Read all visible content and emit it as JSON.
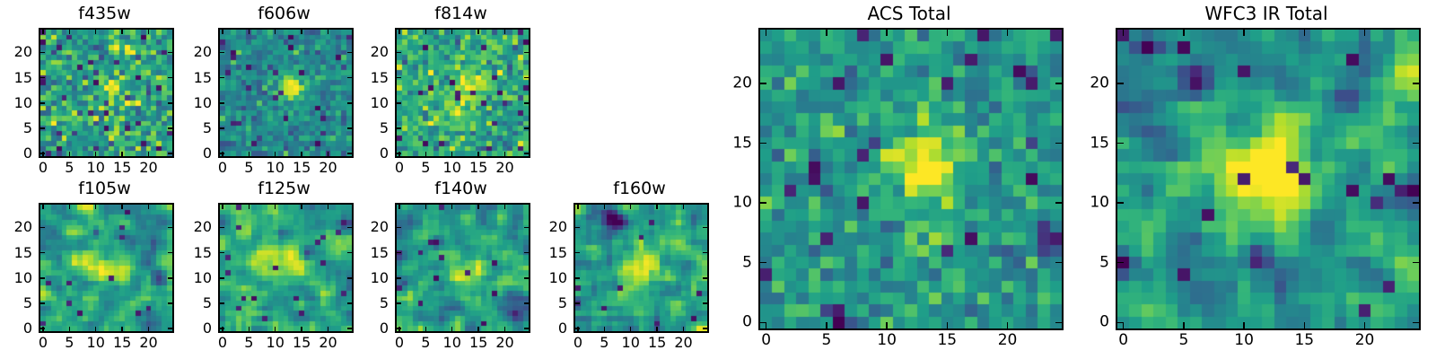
{
  "figure": {
    "background": "#ffffff"
  },
  "colors": {
    "axis": "#000000",
    "text": "#000000",
    "viridis_stops": [
      "#440154",
      "#482878",
      "#3e4989",
      "#31688e",
      "#26828e",
      "#1f9e89",
      "#35b779",
      "#6ece58",
      "#b5de2b",
      "#fde725"
    ]
  },
  "chart_data": {
    "type": "heatmap",
    "colormap": "viridis",
    "grid": {
      "cols": 25,
      "rows": 25
    },
    "axis": {
      "xrange": [
        -0.5,
        24.5
      ],
      "yrange": [
        -0.5,
        24.5
      ],
      "xticks": [
        0,
        5,
        10,
        15,
        20
      ],
      "yticks": [
        0,
        5,
        10,
        15,
        20
      ],
      "tick_direction": "in",
      "grid_lines": false,
      "legend": "none"
    },
    "description": "Postage-stamp image cutouts of one galaxy in seven HST filter bands plus ACS and WFC3 IR stacked totals; each panel is a 25x25-pixel viridis heatmap with a bright source centered near (13,13).",
    "panels": [
      {
        "id": "f435w",
        "title": "f435w",
        "group": "band",
        "size": "small",
        "render": {
          "seed": 11,
          "background": 0.57,
          "noise_sigma": 0.16,
          "smooth_passes": 0,
          "source": {
            "x": 13,
            "y": 13,
            "amplitude": 0.24,
            "sigma": 1.7
          },
          "extra_sources": [],
          "dark_pixel_fraction": 0.04,
          "dark_blobs": []
        }
      },
      {
        "id": "f606w",
        "title": "f606w",
        "group": "band",
        "size": "small",
        "render": {
          "seed": 22,
          "background": 0.47,
          "noise_sigma": 0.1,
          "smooth_passes": 0,
          "source": {
            "x": 13,
            "y": 13,
            "amplitude": 0.58,
            "sigma": 1.7
          },
          "extra_sources": [],
          "dark_pixel_fraction": 0.035,
          "dark_blobs": []
        }
      },
      {
        "id": "f814w",
        "title": "f814w",
        "group": "band",
        "size": "small",
        "render": {
          "seed": 33,
          "background": 0.6,
          "noise_sigma": 0.14,
          "smooth_passes": 0,
          "source": {
            "x": 13,
            "y": 13,
            "amplitude": 0.36,
            "sigma": 2.2
          },
          "extra_sources": [
            {
              "x": 11,
              "y": 9,
              "amplitude": 0.2,
              "sigma": 2.0
            }
          ],
          "dark_pixel_fraction": 0.035,
          "dark_blobs": []
        }
      },
      {
        "id": "f105w",
        "title": "f105w",
        "group": "band",
        "size": "small",
        "render": {
          "seed": 44,
          "background": 0.54,
          "noise_sigma": 0.3,
          "smooth_passes": 1,
          "source": {
            "x": 12,
            "y": 12,
            "amplitude": 0.34,
            "sigma": 2.4
          },
          "extra_sources": [
            {
              "x": 7,
              "y": 13,
              "amplitude": 0.25,
              "sigma": 1.5
            }
          ],
          "dark_pixel_fraction": 0.02,
          "dark_blobs": [
            {
              "x": 10,
              "y": 19,
              "sigma": 0.7,
              "depth": 0.45
            },
            {
              "x": 22,
              "y": 10,
              "sigma": 1.0,
              "depth": 0.35
            }
          ]
        }
      },
      {
        "id": "f125w",
        "title": "f125w",
        "group": "band",
        "size": "small",
        "render": {
          "seed": 55,
          "background": 0.58,
          "noise_sigma": 0.3,
          "smooth_passes": 1,
          "source": {
            "x": 12,
            "y": 13,
            "amplitude": 0.38,
            "sigma": 2.6
          },
          "extra_sources": [
            {
              "x": 6,
              "y": 13,
              "amplitude": 0.2,
              "sigma": 2.0
            }
          ],
          "dark_pixel_fraction": 0.025,
          "dark_blobs": [
            {
              "x": 16,
              "y": 15,
              "sigma": 0.8,
              "depth": 0.4
            },
            {
              "x": 23,
              "y": 21,
              "sigma": 0.8,
              "depth": 0.35
            }
          ]
        }
      },
      {
        "id": "f140w",
        "title": "f140w",
        "group": "band",
        "size": "small",
        "render": {
          "seed": 66,
          "background": 0.57,
          "noise_sigma": 0.3,
          "smooth_passes": 1,
          "source": {
            "x": 12,
            "y": 12,
            "amplitude": 0.35,
            "sigma": 2.6
          },
          "extra_sources": [],
          "dark_pixel_fraction": 0.02,
          "dark_blobs": [
            {
              "x": 22,
              "y": 3,
              "sigma": 1.2,
              "depth": 0.5
            },
            {
              "x": 7,
              "y": 17,
              "sigma": 0.7,
              "depth": 0.45
            },
            {
              "x": 12,
              "y": 24,
              "sigma": 0.8,
              "depth": 0.4
            }
          ]
        }
      },
      {
        "id": "f160w",
        "title": "f160w",
        "group": "band",
        "size": "small",
        "render": {
          "seed": 77,
          "background": 0.56,
          "noise_sigma": 0.32,
          "smooth_passes": 1,
          "source": {
            "x": 13,
            "y": 12,
            "amplitude": 0.4,
            "sigma": 2.6
          },
          "extra_sources": [
            {
              "x": 20,
              "y": 16,
              "amplitude": 0.18,
              "sigma": 1.5
            }
          ],
          "dark_pixel_fraction": 0.015,
          "dark_blobs": [
            {
              "x": 6,
              "y": 22,
              "sigma": 1.3,
              "depth": 0.6
            },
            {
              "x": 8,
              "y": 21,
              "sigma": 0.9,
              "depth": 0.4
            },
            {
              "x": 0,
              "y": 5,
              "sigma": 0.7,
              "depth": 0.45
            }
          ]
        }
      },
      {
        "id": "acs",
        "title": "ACS Total",
        "group": "total",
        "size": "large",
        "render": {
          "seed": 88,
          "background": 0.54,
          "noise_sigma": 0.11,
          "smooth_passes": 0,
          "source": {
            "x": 13,
            "y": 13,
            "amplitude": 0.55,
            "sigma": 1.9
          },
          "extra_sources": [
            {
              "x": 14,
              "y": 6,
              "amplitude": 0.22,
              "sigma": 1.5
            }
          ],
          "dark_pixel_fraction": 0.03,
          "dark_blobs": [
            {
              "x": 23.5,
              "y": 7,
              "sigma": 0.9,
              "depth": 0.55
            },
            {
              "x": 9,
              "y": 15,
              "sigma": 0.6,
              "depth": 0.5
            },
            {
              "x": 4,
              "y": 13,
              "sigma": 0.6,
              "depth": 0.5
            },
            {
              "x": 6,
              "y": 0,
              "sigma": 0.9,
              "depth": 0.4
            },
            {
              "x": 21,
              "y": 21,
              "sigma": 0.6,
              "depth": 0.45
            }
          ]
        }
      },
      {
        "id": "wfc3",
        "title": "WFC3 IR Total",
        "group": "total",
        "size": "large",
        "render": {
          "seed": 99,
          "background": 0.52,
          "noise_sigma": 0.34,
          "smooth_passes": 1,
          "source": {
            "x": 12.5,
            "y": 12.5,
            "amplitude": 0.58,
            "sigma": 2.7
          },
          "extra_sources": [
            {
              "x": 8,
              "y": 12,
              "amplitude": 0.25,
              "sigma": 2.2
            },
            {
              "x": 22,
              "y": 17,
              "amplitude": 0.2,
              "sigma": 1.5
            }
          ],
          "dark_pixel_fraction": 0.02,
          "dark_blobs": [
            {
              "x": 24,
              "y": 11,
              "sigma": 1.1,
              "depth": 0.6
            },
            {
              "x": 11,
              "y": 5.5,
              "sigma": 0.8,
              "depth": 0.55
            },
            {
              "x": 21,
              "y": 10,
              "sigma": 0.7,
              "depth": 0.5
            },
            {
              "x": 6,
              "y": 20,
              "sigma": 1.0,
              "depth": 0.5
            },
            {
              "x": 2,
              "y": 23,
              "sigma": 0.8,
              "depth": 0.45
            },
            {
              "x": 0,
              "y": 5,
              "sigma": 0.7,
              "depth": 0.5
            }
          ]
        }
      }
    ]
  }
}
